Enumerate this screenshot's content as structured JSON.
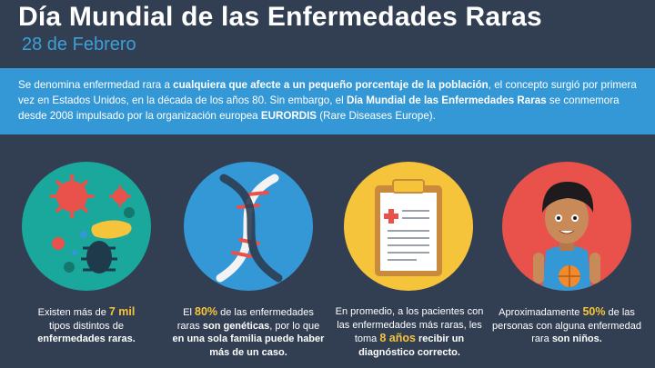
{
  "header": {
    "title": "Día Mundial de las Enfermedades Raras",
    "date": "28 de Febrero"
  },
  "intro": {
    "p1": "Se denomina enfermedad rara a ",
    "b1": "cualquiera que afecte a un pequeño porcentaje de la población",
    "p2": ", el concepto surgió por primera vez en Estados Unidos, en la década de los años 80. Sin embargo, el ",
    "b2": "Día Mundial de las Enfermedades Raras",
    "p3": " se conmemora desde 2008 impulsado por la organización europea ",
    "b3": "EURORDIS",
    "p4": " (Rare Diseases Europe)."
  },
  "facts": [
    {
      "icon": "microbes-icon",
      "color": "#1aa79c",
      "t1": "Existen más de ",
      "hl": "7 mil",
      "t2": " tipos distintos de ",
      "b": "enfermedades raras."
    },
    {
      "icon": "dna-icon",
      "color": "#3598d6",
      "t1": "El ",
      "hl": "80%",
      "t2": " de las enfermedades raras ",
      "b": "son genéticas",
      "t3": ", por lo que ",
      "b2": "en una sola familia puede haber más de un caso."
    },
    {
      "icon": "clipboard-icon",
      "color": "#f6c43b",
      "t1": "En promedio, a los pacientes con las enfermedades más raras, les toma ",
      "hl": "8 años",
      "t2": " ",
      "b": "recibir un diagnóstico correcto."
    },
    {
      "icon": "child-icon",
      "color": "#e8524a",
      "t1": "Aproximadamente ",
      "hl": "50%",
      "t2": " de las personas con alguna enfermedad rara ",
      "b": "son niños."
    }
  ]
}
